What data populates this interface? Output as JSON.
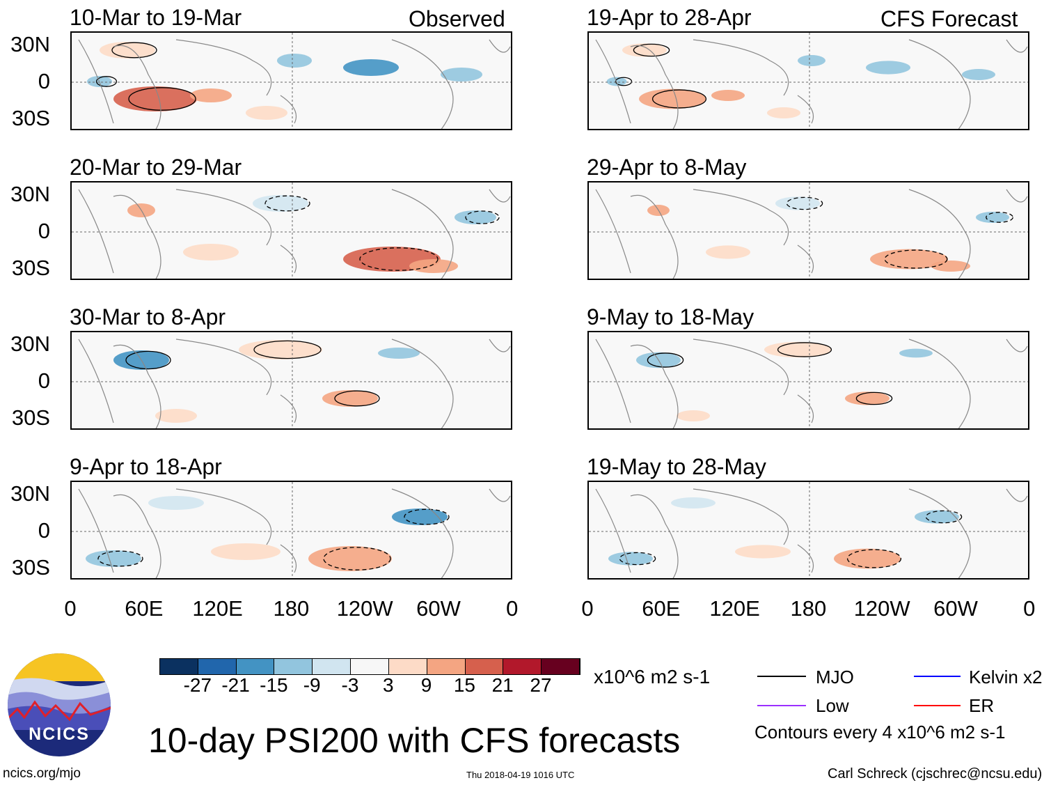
{
  "title": "10-day PSI200 with CFS forecasts",
  "observed_label": "Observed",
  "forecast_label": "CFS Forecast",
  "observed_panels": [
    "10-Mar to 19-Mar",
    "20-Mar to 29-Mar",
    "30-Mar to 8-Apr",
    "9-Apr to 18-Apr"
  ],
  "forecast_panels": [
    "19-Apr to 28-Apr",
    "29-Apr to 8-May",
    "9-May to 18-May",
    "19-May to 28-May"
  ],
  "lat_ticks": [
    "30N",
    "0",
    "30S"
  ],
  "lon_ticks": [
    "0",
    "60E",
    "120E",
    "180",
    "120W",
    "60W",
    "0"
  ],
  "colorbar": {
    "labels": [
      "-27",
      "-21",
      "-15",
      "-9",
      "-3",
      "3",
      "9",
      "15",
      "21",
      "27"
    ],
    "colors": [
      "#0b3160",
      "#2166ac",
      "#4393c3",
      "#92c5de",
      "#d1e5f0",
      "#f7f7f7",
      "#fddbc7",
      "#f4a582",
      "#d6604d",
      "#b2182b",
      "#67001f"
    ],
    "units": "x10^6 m2 s-1"
  },
  "legend": [
    {
      "label": "MJO",
      "color": "#000000"
    },
    {
      "label": "Kelvin x2",
      "color": "#0000ff"
    },
    {
      "label": "Low",
      "color": "#9b30ff"
    },
    {
      "label": "ER",
      "color": "#ff0000"
    }
  ],
  "contour_note": "Contours every 4 x10^6 m2 s-1",
  "logo_text": "NCICS",
  "url": "ncics.org/mjo",
  "timestamp": "Thu 2018-04-19 1016 UTC",
  "credit": "Carl Schreck (cjschrec@ncsu.edu)"
}
